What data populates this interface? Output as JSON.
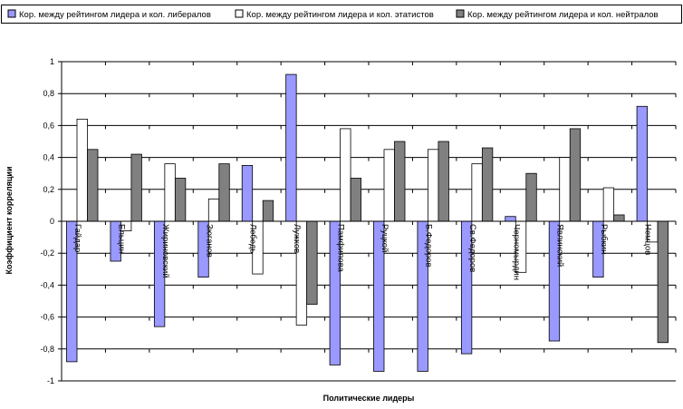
{
  "chart_data": {
    "type": "bar",
    "xlabel": "Политические лидеры",
    "ylabel": "Коэффициент корреляции",
    "ylim": [
      -1,
      1
    ],
    "yticks": [
      -1,
      -0.8,
      -0.6,
      -0.4,
      -0.2,
      0,
      0.2,
      0.4,
      0.6,
      0.8,
      1
    ],
    "ytick_labels": [
      "-1",
      "-0,8",
      "-0,6",
      "-0,4",
      "-0,2",
      "0",
      "0,2",
      "0,4",
      "0,6",
      "0,8",
      "1"
    ],
    "grid": true,
    "legend_position": "top",
    "categories": [
      "Гайдар",
      "Ельцин",
      "Жириновский",
      "Зюганов",
      "Лебедь",
      "Лужков",
      "Памфилова",
      "Руцкой",
      "Б.Федоров",
      "Св.Федоров",
      "Черномырдин",
      "Явлинский",
      "Рыбкин",
      "Немцов"
    ],
    "series": [
      {
        "name": "Кор. между рейтингом лидера и кол. либералов",
        "color": "#9999ff",
        "values": [
          -0.88,
          -0.25,
          -0.66,
          -0.35,
          0.35,
          0.92,
          -0.9,
          -0.94,
          -0.94,
          -0.83,
          0.03,
          -0.75,
          -0.35,
          0.72
        ]
      },
      {
        "name": "Кор. между рейтингом лидера и кол. этатистов",
        "color": "#ffffff",
        "values": [
          0.64,
          -0.06,
          0.36,
          0.14,
          -0.33,
          -0.65,
          0.58,
          0.45,
          0.45,
          0.36,
          -0.32,
          0.4,
          0.21,
          -0.13
        ]
      },
      {
        "name": "Кор. между рейтингом лидера и кол. нейтралов",
        "color": "#808080",
        "values": [
          0.45,
          0.42,
          0.27,
          0.36,
          0.13,
          -0.52,
          0.27,
          0.5,
          0.5,
          0.46,
          0.3,
          0.58,
          0.04,
          -0.76
        ]
      }
    ]
  }
}
